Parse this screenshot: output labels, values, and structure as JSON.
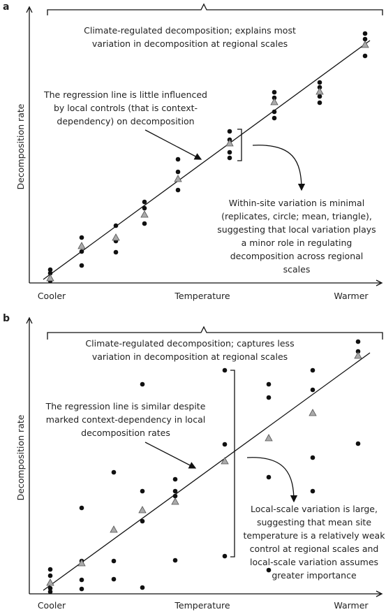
{
  "panels": [
    {
      "label": "a",
      "y_label": "Decomposition rate",
      "x_labels": [
        "Cooler",
        "Temperature",
        "Warmer"
      ],
      "top_note": [
        "Climate-regulated decomposition; explains most",
        "variation in decomposition at regional scales"
      ],
      "line_note": [
        "The regression line is little influenced",
        "by local controls (that is context-",
        "dependency) on decomposition"
      ],
      "site_note": [
        "Within-site variation is minimal",
        "(replicates, circle; mean, triangle),",
        "suggesting that local variation plays",
        "a minor role in regulating",
        "decomposition across regional",
        "scales"
      ]
    },
    {
      "label": "b",
      "y_label": "Decomposition rate",
      "x_labels": [
        "Cooler",
        "Temperature",
        "Warmer"
      ],
      "top_note": [
        "Climate-regulated decomposition; captures less",
        "variation in decomposition at regional scales"
      ],
      "line_note": [
        "The regression line is similar despite",
        "marked context-dependency in local",
        "decomposition rates"
      ],
      "site_note": [
        "Local-scale variation is large,",
        "suggesting that mean site",
        "temperature is a relatively weak",
        "control at regional scales and",
        "local-scale variation assumes",
        "greater importance"
      ]
    }
  ]
}
